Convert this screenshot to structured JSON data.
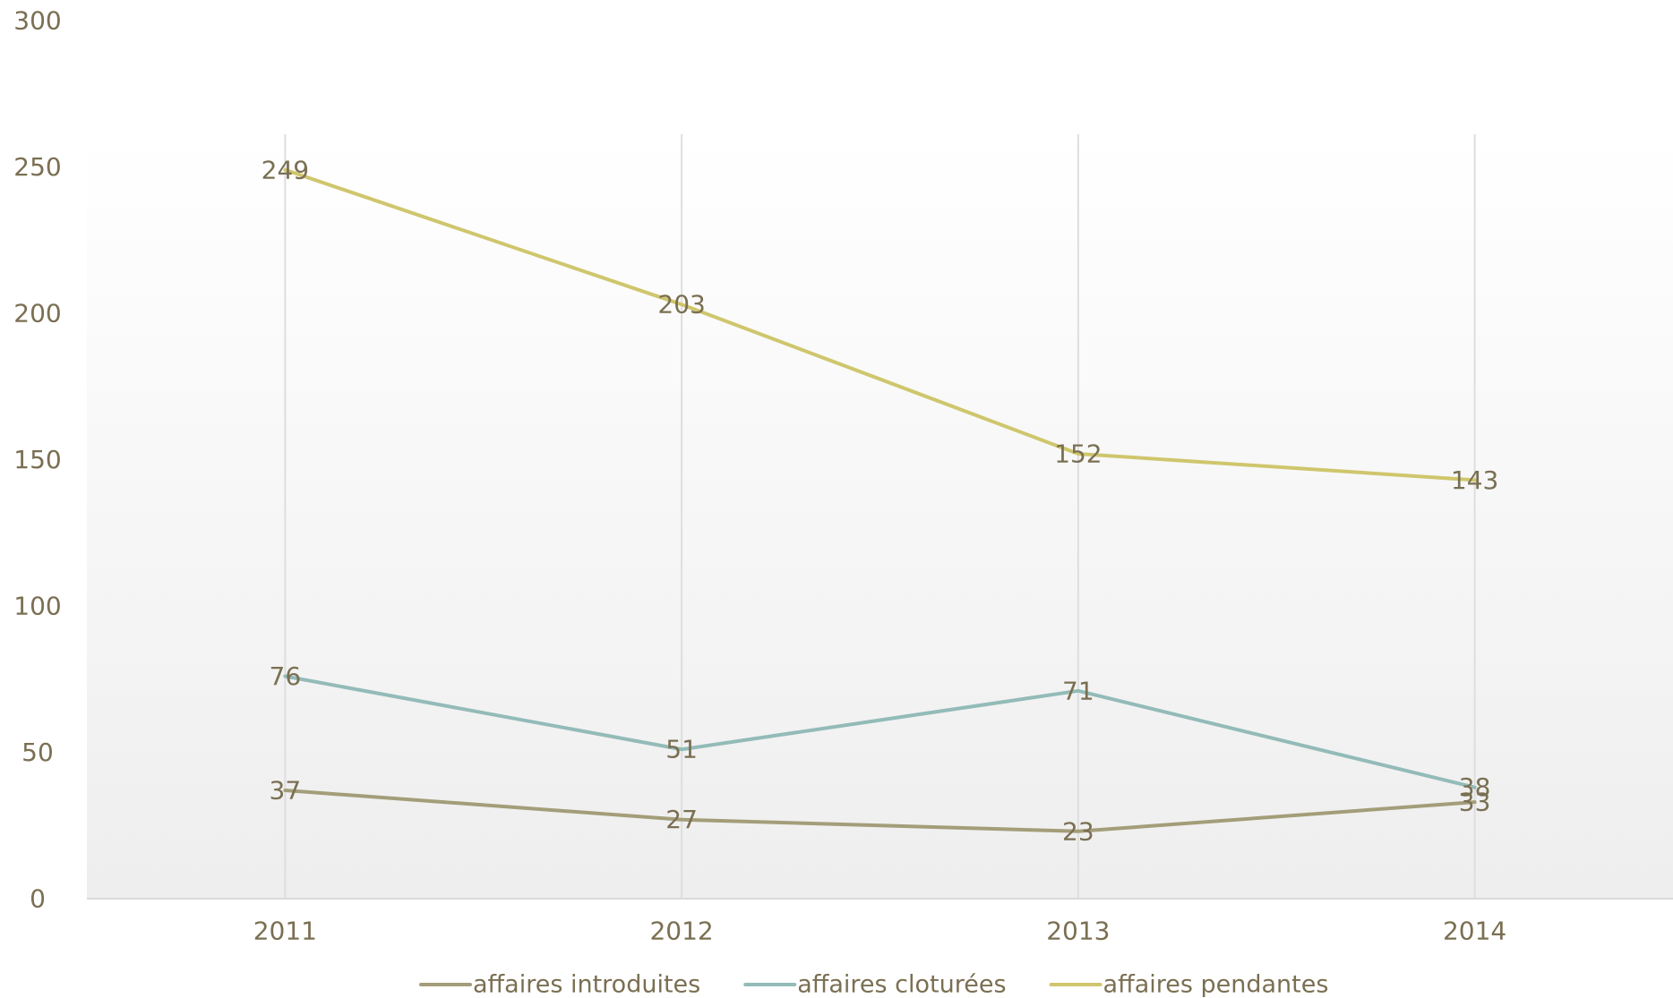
{
  "chart_data": {
    "type": "line",
    "categories": [
      "2011",
      "2012",
      "2013",
      "2014"
    ],
    "ylim": [
      0,
      300
    ],
    "yticks": [
      0,
      50,
      100,
      150,
      200,
      250,
      300
    ],
    "grid": "vertical",
    "legend_position": "bottom",
    "series": [
      {
        "name": "affaires introduites",
        "color": "#a39d79",
        "values": [
          37,
          27,
          23,
          33
        ]
      },
      {
        "name": "affaires cloturées",
        "color": "#93bbb8",
        "values": [
          76,
          51,
          71,
          38
        ]
      },
      {
        "name": "affaires pendantes",
        "color": "#cfc66d",
        "values": [
          249,
          203,
          152,
          143
        ]
      }
    ]
  }
}
